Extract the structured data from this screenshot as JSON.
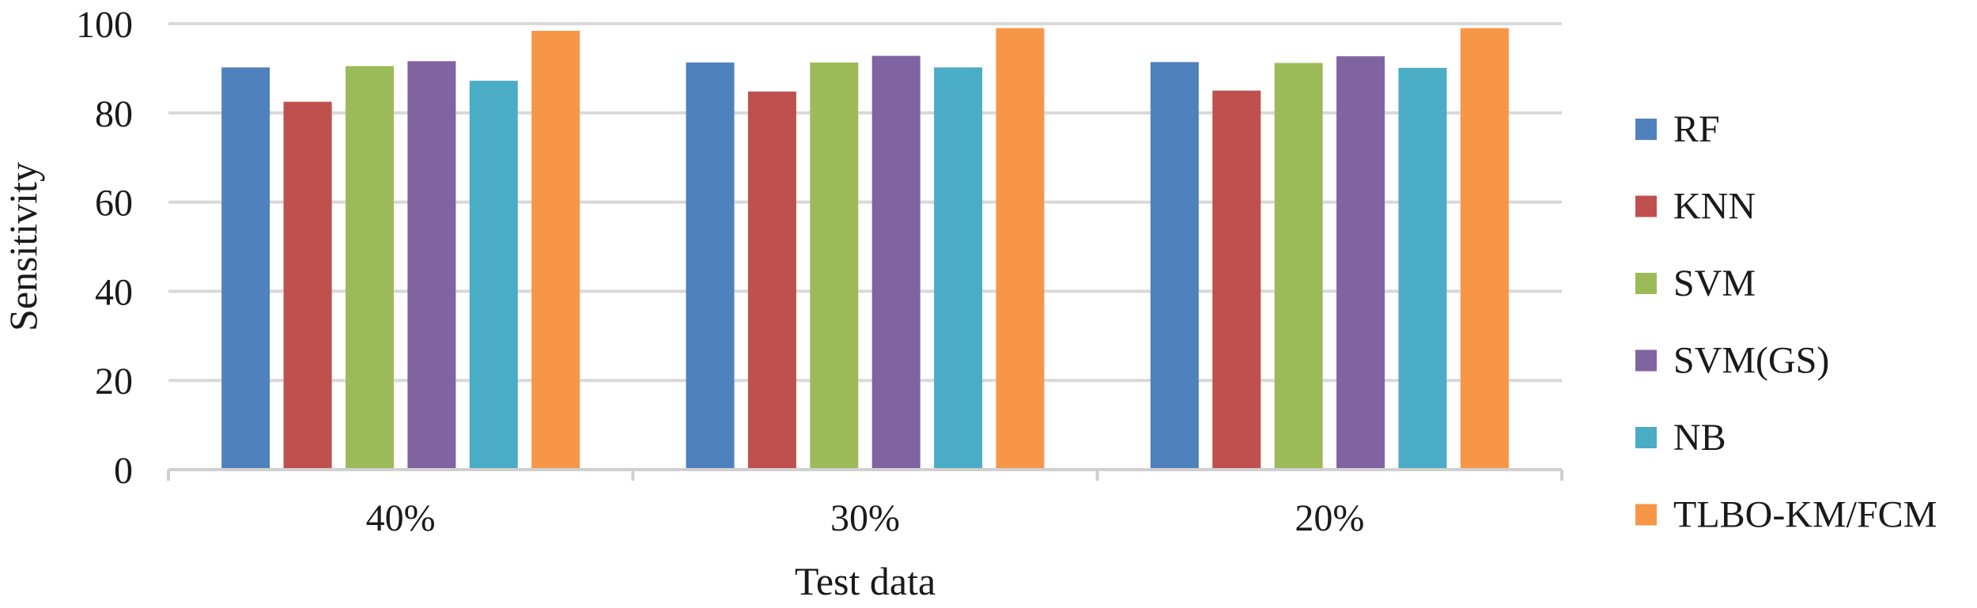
{
  "chart_data": {
    "type": "bar",
    "categories": [
      "40%",
      "30%",
      "20%"
    ],
    "series": [
      {
        "name": "RF",
        "values": [
          90.2,
          91.3,
          91.4
        ],
        "color": "#4F81BD"
      },
      {
        "name": "KNN",
        "values": [
          82.5,
          84.8,
          85.0
        ],
        "color": "#C0504D"
      },
      {
        "name": "SVM",
        "values": [
          90.5,
          91.3,
          91.2
        ],
        "color": "#9BBB59"
      },
      {
        "name": "SVM(GS)",
        "values": [
          91.6,
          92.8,
          92.7
        ],
        "color": "#8064A2"
      },
      {
        "name": "NB",
        "values": [
          87.2,
          90.2,
          90.1
        ],
        "color": "#4BACC6"
      },
      {
        "name": "TLBO-KM/FCM",
        "values": [
          98.4,
          99.0,
          99.0
        ],
        "color": "#F79646"
      }
    ],
    "title": "",
    "xlabel": "Test data",
    "ylabel": "Sensitivity",
    "ylim": [
      0,
      100
    ],
    "yticks": [
      0,
      20,
      40,
      60,
      80,
      100
    ],
    "grid": true,
    "legend_position": "right"
  }
}
